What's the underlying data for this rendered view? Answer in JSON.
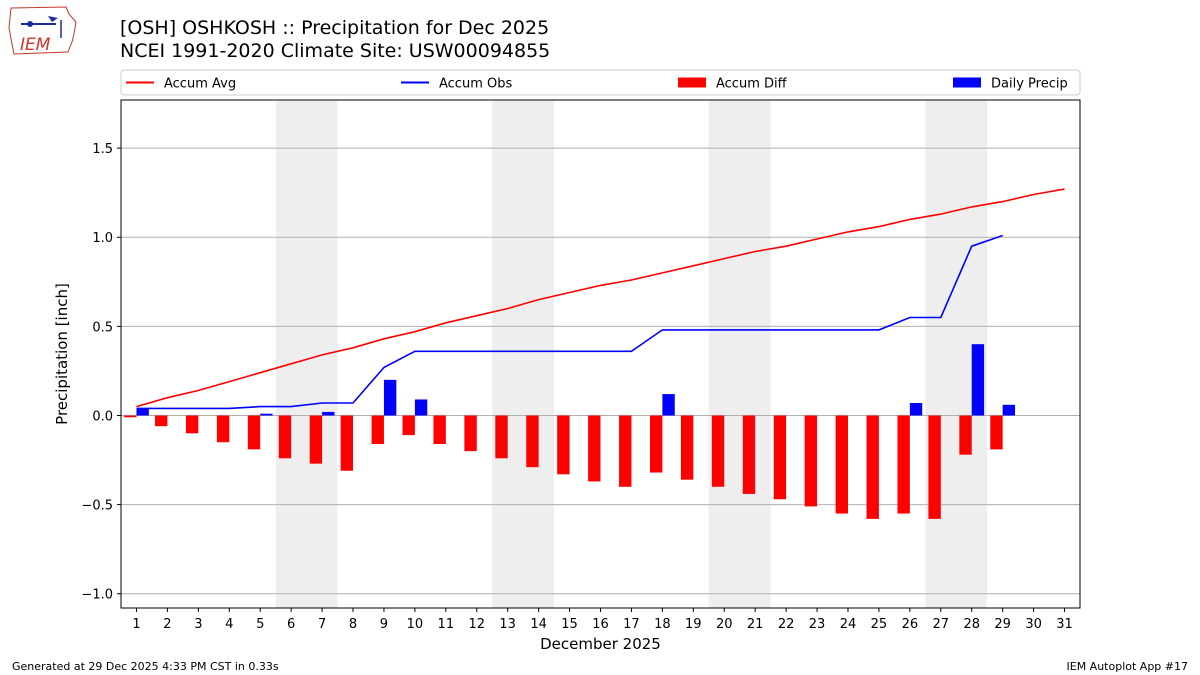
{
  "title_line1": "[OSH] OSHKOSH :: Precipitation for Dec 2025",
  "title_line2": "NCEI 1991-2020 Climate Site: USW00094855",
  "logo_text": "IEM",
  "footer_left": "Generated at 29 Dec 2025 4:33 PM CST in 0.33s",
  "footer_right": "IEM Autoplot App #17",
  "colors": {
    "avg": "#ff0000",
    "obs": "#0000ff",
    "diff": "#ff0000",
    "daily": "#0000ff",
    "weekend": "#eeeeee",
    "grid": "#b0b0b0"
  },
  "chart_data": {
    "type": "bar",
    "xlabel": "December 2025",
    "ylabel": "Precipitation [inch]",
    "xlim": [
      0.5,
      31.5
    ],
    "ylim": [
      -1.08,
      1.77
    ],
    "yticks": [
      -1.0,
      -0.5,
      0.0,
      0.5,
      1.0,
      1.5
    ],
    "ytick_labels": [
      "−1.0",
      "−0.5",
      "0.0",
      "0.5",
      "1.0",
      "1.5"
    ],
    "categories": [
      1,
      2,
      3,
      4,
      5,
      6,
      7,
      8,
      9,
      10,
      11,
      12,
      13,
      14,
      15,
      16,
      17,
      18,
      19,
      20,
      21,
      22,
      23,
      24,
      25,
      26,
      27,
      28,
      29,
      30,
      31
    ],
    "shaded_weekend_ranges": [
      [
        5.5,
        7.5
      ],
      [
        12.5,
        14.5
      ],
      [
        19.5,
        21.5
      ],
      [
        26.5,
        28.5
      ]
    ],
    "legend": [
      "Accum Avg",
      "Accum Obs",
      "Accum Diff",
      "Daily Precip"
    ],
    "legend_position": "top",
    "series": [
      {
        "name": "Accum Avg",
        "kind": "line",
        "x": [
          1,
          2,
          3,
          4,
          5,
          6,
          7,
          8,
          9,
          10,
          11,
          12,
          13,
          14,
          15,
          16,
          17,
          18,
          19,
          20,
          21,
          22,
          23,
          24,
          25,
          26,
          27,
          28,
          29,
          30,
          31
        ],
        "values": [
          0.05,
          0.1,
          0.14,
          0.19,
          0.24,
          0.29,
          0.34,
          0.38,
          0.43,
          0.47,
          0.52,
          0.56,
          0.6,
          0.65,
          0.69,
          0.73,
          0.76,
          0.8,
          0.84,
          0.88,
          0.92,
          0.95,
          0.99,
          1.03,
          1.06,
          1.1,
          1.13,
          1.17,
          1.2,
          1.24,
          1.27
        ]
      },
      {
        "name": "Accum Obs",
        "kind": "line",
        "x": [
          1,
          2,
          3,
          4,
          5,
          6,
          7,
          8,
          9,
          10,
          11,
          12,
          13,
          14,
          15,
          16,
          17,
          18,
          19,
          20,
          21,
          22,
          23,
          24,
          25,
          26,
          27,
          28,
          29
        ],
        "values": [
          0.04,
          0.04,
          0.04,
          0.04,
          0.05,
          0.05,
          0.07,
          0.07,
          0.27,
          0.36,
          0.36,
          0.36,
          0.36,
          0.36,
          0.36,
          0.36,
          0.36,
          0.48,
          0.48,
          0.48,
          0.48,
          0.48,
          0.48,
          0.48,
          0.48,
          0.55,
          0.55,
          0.95,
          1.01
        ]
      },
      {
        "name": "Accum Diff",
        "kind": "bar",
        "offset": -0.2,
        "x": [
          1,
          2,
          3,
          4,
          5,
          6,
          7,
          8,
          9,
          10,
          11,
          12,
          13,
          14,
          15,
          16,
          17,
          18,
          19,
          20,
          21,
          22,
          23,
          24,
          25,
          26,
          27,
          28,
          29
        ],
        "values": [
          -0.01,
          -0.06,
          -0.1,
          -0.15,
          -0.19,
          -0.24,
          -0.27,
          -0.31,
          -0.16,
          -0.11,
          -0.16,
          -0.2,
          -0.24,
          -0.29,
          -0.33,
          -0.37,
          -0.4,
          -0.32,
          -0.36,
          -0.4,
          -0.44,
          -0.47,
          -0.51,
          -0.55,
          -0.58,
          -0.55,
          -0.58,
          -0.22,
          -0.19
        ]
      },
      {
        "name": "Daily Precip",
        "kind": "bar",
        "offset": 0.2,
        "x": [
          1,
          5,
          7,
          9,
          10,
          18,
          26,
          28,
          29
        ],
        "values": [
          0.04,
          0.01,
          0.02,
          0.2,
          0.09,
          0.12,
          0.07,
          0.4,
          0.06
        ]
      }
    ]
  }
}
